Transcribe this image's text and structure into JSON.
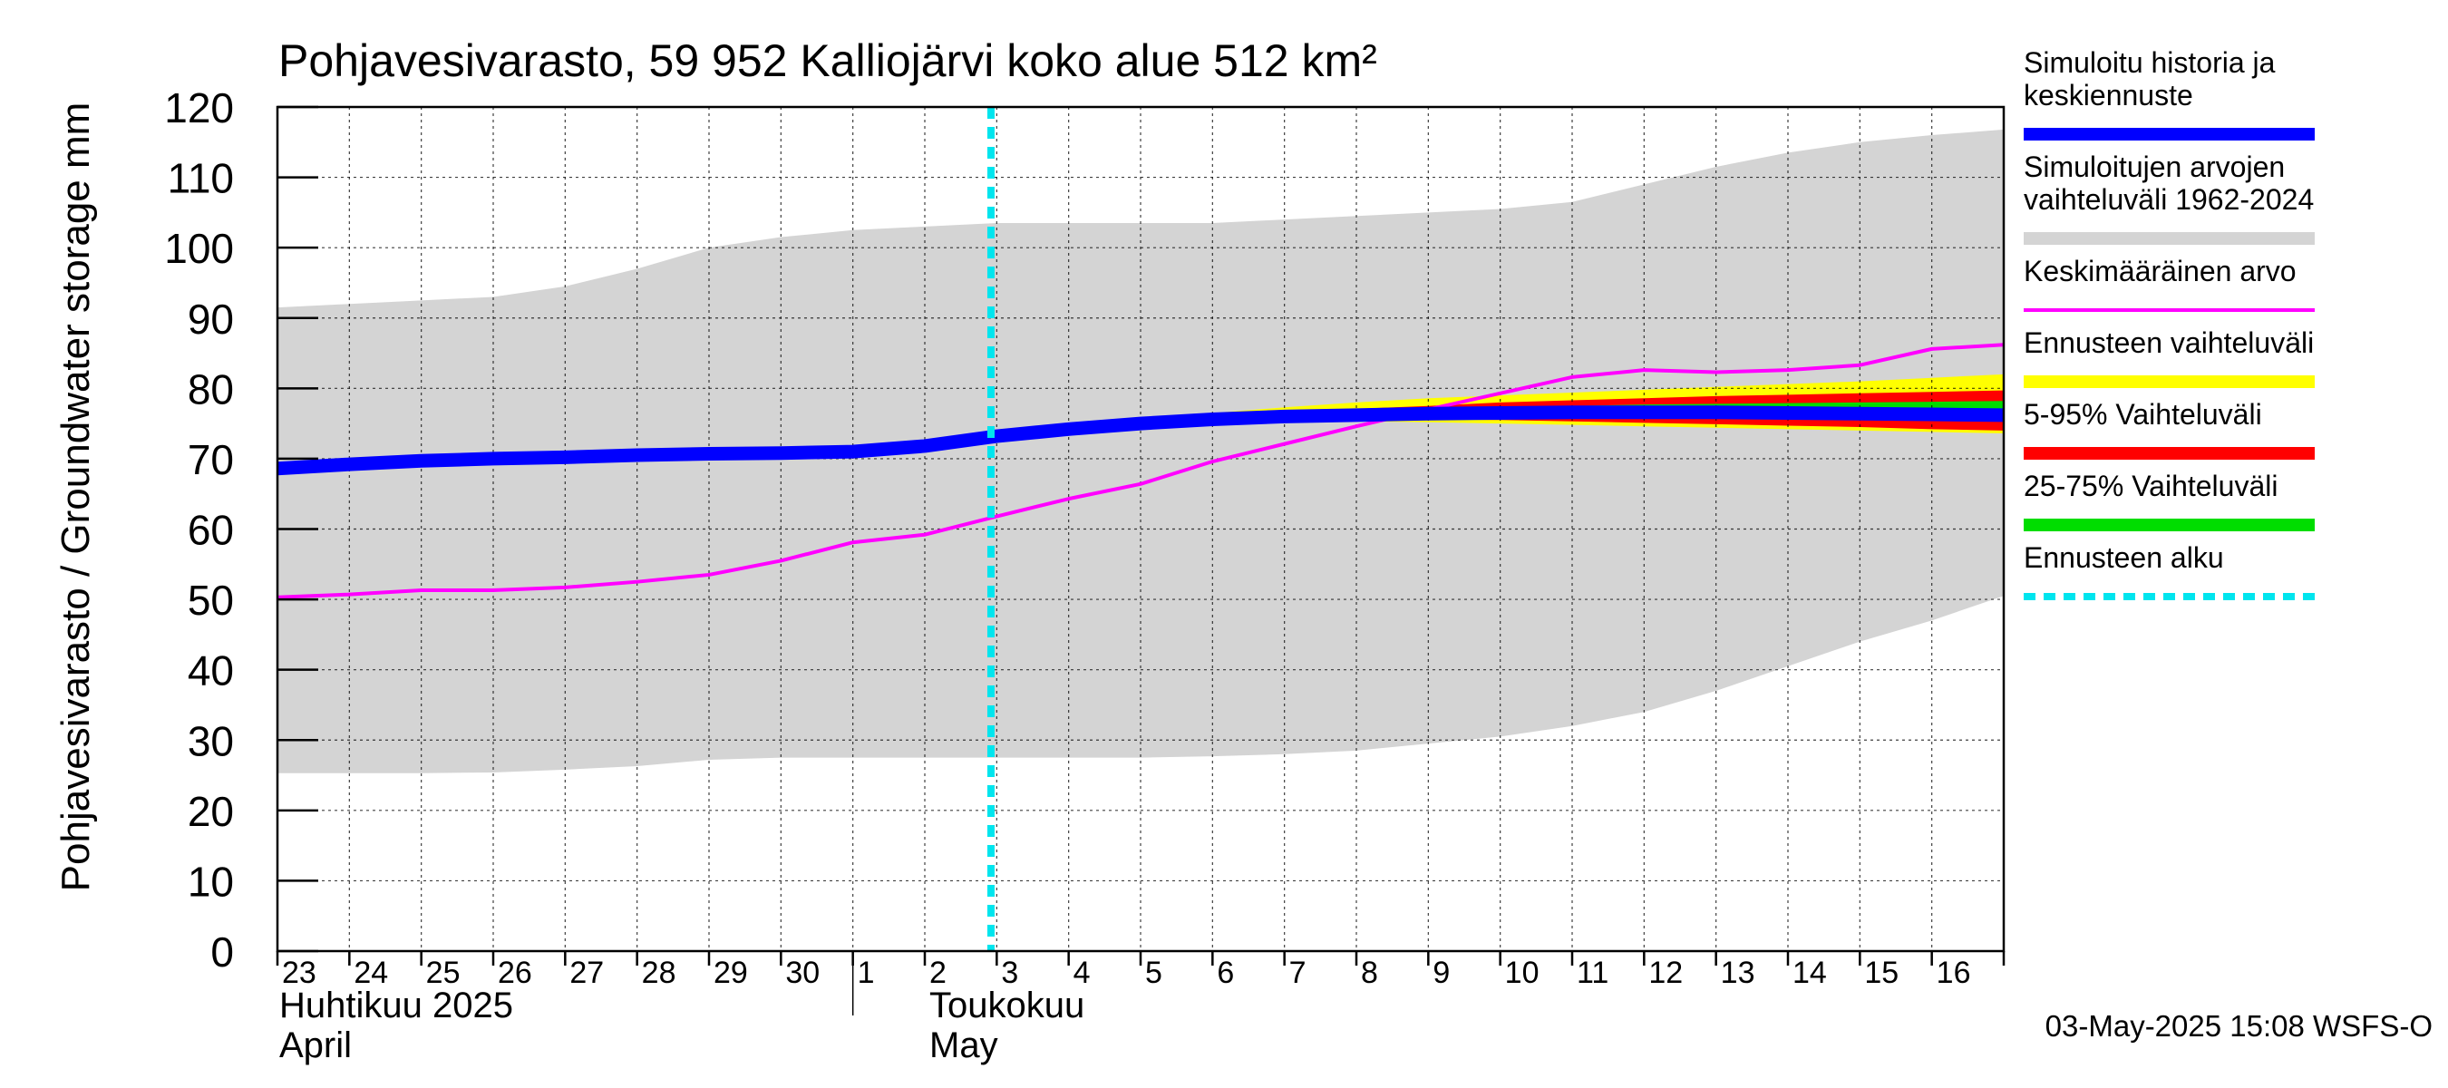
{
  "chart_data": {
    "type": "area",
    "title": "Pohjavesivarasto, 59 952 Kalliojärvi koko alue 512 km²",
    "ylabel": "Pohjavesivarasto / Groundwater storage   mm",
    "ylim": [
      0,
      120
    ],
    "yticks": [
      0,
      10,
      20,
      30,
      40,
      50,
      60,
      70,
      80,
      90,
      100,
      110,
      120
    ],
    "grid": true,
    "x": [
      0,
      1,
      2,
      3,
      4,
      5,
      6,
      7,
      8,
      9,
      10,
      11,
      12,
      13,
      14,
      15,
      16,
      17,
      18,
      19,
      20,
      21,
      22,
      23,
      24
    ],
    "day_labels": [
      "23",
      "24",
      "25",
      "26",
      "27",
      "28",
      "29",
      "30",
      "1",
      "2",
      "3",
      "4",
      "5",
      "6",
      "7",
      "8",
      "9",
      "10",
      "11",
      "12",
      "13",
      "14",
      "15",
      "16"
    ],
    "month_labels": [
      {
        "fi": "Huhtikuu  2025",
        "en": "April"
      },
      {
        "fi": "Toukokuu",
        "en": "May"
      }
    ],
    "forecast_start": 10,
    "series": [
      {
        "name": "Simuloitujen arvojen vaihteluväli 1962-2024",
        "color": "#d4d4d4",
        "kind": "band",
        "upper": [
          91.5,
          92,
          92.5,
          93,
          94.5,
          97,
          100,
          101.5,
          102.5,
          103,
          103.5,
          103.5,
          103.5,
          103.5,
          104,
          104.5,
          105,
          105.5,
          106.5,
          109,
          111.5,
          113.5,
          115,
          116,
          116.8
        ],
        "lower": [
          25.3,
          25.3,
          25.3,
          25.4,
          25.8,
          26.3,
          27.2,
          27.5,
          27.5,
          27.5,
          27.5,
          27.5,
          27.5,
          27.7,
          28,
          28.5,
          29.5,
          30.5,
          32,
          34,
          37,
          40.5,
          44,
          47,
          50.5
        ]
      },
      {
        "name": "Ennusteen vaihteluväli",
        "color": "#ffff00",
        "kind": "band",
        "upper": [
          null,
          null,
          null,
          null,
          null,
          null,
          null,
          null,
          null,
          null,
          73.2,
          74.3,
          75.5,
          76.5,
          77.3,
          78,
          78.6,
          79,
          79.4,
          79.8,
          80.2,
          80.6,
          81,
          81.5,
          82
        ],
        "lower": [
          null,
          null,
          null,
          null,
          null,
          null,
          null,
          null,
          null,
          null,
          73.2,
          74,
          74.8,
          75.2,
          75.3,
          75.3,
          75.2,
          75,
          74.8,
          74.6,
          74.4,
          74.2,
          74,
          73.8,
          73.6
        ]
      },
      {
        "name": "5-95% Vaihteluväli",
        "color": "#ff0000",
        "kind": "band",
        "upper": [
          null,
          null,
          null,
          null,
          null,
          null,
          null,
          null,
          null,
          null,
          73.2,
          74.2,
          75.2,
          76,
          76.6,
          77.1,
          77.5,
          78,
          78.3,
          78.6,
          78.9,
          79.1,
          79.3,
          79.5,
          79.7
        ],
        "lower": [
          null,
          null,
          null,
          null,
          null,
          null,
          null,
          null,
          null,
          null,
          73.2,
          74.1,
          75,
          75.5,
          75.7,
          75.7,
          75.6,
          75.5,
          75.3,
          75.1,
          74.9,
          74.7,
          74.5,
          74.2,
          74
        ]
      },
      {
        "name": "25-75% Vaihteluväli",
        "color": "#00dd00",
        "kind": "band",
        "upper": [
          null,
          null,
          null,
          null,
          null,
          null,
          null,
          null,
          null,
          null,
          73.2,
          74.2,
          75.1,
          75.8,
          76.3,
          76.7,
          77,
          77.3,
          77.5,
          77.7,
          77.8,
          77.9,
          78,
          78.1,
          78.2
        ],
        "lower": [
          null,
          null,
          null,
          null,
          null,
          null,
          null,
          null,
          null,
          null,
          73.2,
          74.1,
          75,
          75.6,
          75.9,
          76,
          76,
          76,
          75.9,
          75.8,
          75.7,
          75.6,
          75.5,
          75.4,
          75.3
        ]
      },
      {
        "name": "Keskimääräinen arvo",
        "color": "#ff00ff",
        "kind": "line",
        "values": [
          50.3,
          50.7,
          51.3,
          51.3,
          51.7,
          52.5,
          53.5,
          55.5,
          58.1,
          59.2,
          61.8,
          64.3,
          66.4,
          69.6,
          72.1,
          74.6,
          77,
          79.3,
          81.6,
          82.6,
          82.3,
          82.6,
          83.3,
          85.6,
          86.2
        ]
      },
      {
        "name": "Simuloitu historia ja keskiennuste",
        "color": "#0000ff",
        "kind": "line",
        "values": [
          68.6,
          69.2,
          69.7,
          70,
          70.2,
          70.5,
          70.7,
          70.8,
          71,
          71.8,
          73.2,
          74.2,
          75,
          75.6,
          76,
          76.2,
          76.4,
          76.5,
          76.6,
          76.6,
          76.6,
          76.5,
          76.4,
          76.3,
          76.2
        ]
      }
    ],
    "legend_position": "right",
    "legend": [
      {
        "label": "Simuloitu historia ja keskiennuste",
        "color": "#0000ff",
        "style": "solid"
      },
      {
        "label": "Simuloitujen arvojen vaihteluväli 1962-2024",
        "color": "#d4d4d4",
        "style": "solid"
      },
      {
        "label": "Keskimääräinen arvo",
        "color": "#ff00ff",
        "style": "thin"
      },
      {
        "label": "Ennusteen vaihteluväli",
        "color": "#ffff00",
        "style": "solid"
      },
      {
        "label": "5-95% Vaihteluväli",
        "color": "#ff0000",
        "style": "solid"
      },
      {
        "label": "25-75% Vaihteluväli",
        "color": "#00dd00",
        "style": "solid"
      },
      {
        "label": "Ennusteen alku",
        "color": "#00e5ee",
        "style": "dashed"
      }
    ],
    "footer": "03-May-2025 15:08 WSFS-O"
  }
}
